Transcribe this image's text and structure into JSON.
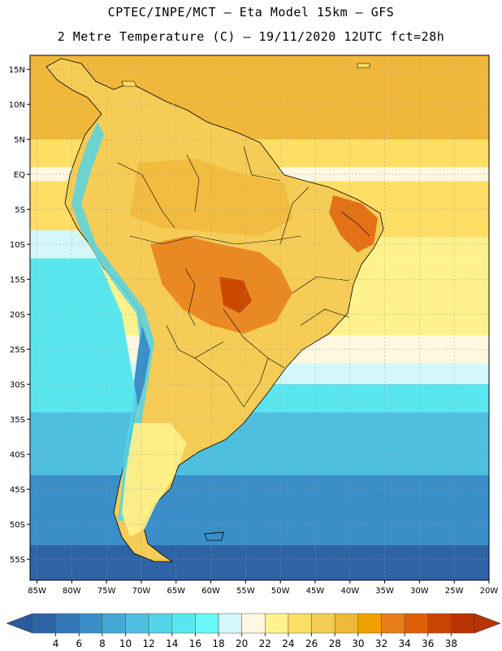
{
  "header": {
    "line1": "CPTEC/INPE/MCT –  Eta Model 15km – GFS",
    "line2": "2 Metre Temperature (C) – 19/11/2020 12UTC fct=28h"
  },
  "axes": {
    "lat_labels": [
      "15N",
      "10N",
      "5N",
      "EQ",
      "5S",
      "10S",
      "15S",
      "20S",
      "25S",
      "30S",
      "35S",
      "40S",
      "45S",
      "50S",
      "55S"
    ],
    "lat_values": [
      15,
      10,
      5,
      0,
      -5,
      -10,
      -15,
      -20,
      -25,
      -30,
      -35,
      -40,
      -45,
      -50,
      -55
    ],
    "lon_labels": [
      "85W",
      "80W",
      "75W",
      "70W",
      "65W",
      "60W",
      "55W",
      "50W",
      "45W",
      "40W",
      "35W",
      "30W",
      "25W",
      "20W"
    ],
    "lon_values": [
      -85,
      -80,
      -75,
      -70,
      -65,
      -60,
      -55,
      -50,
      -45,
      -40,
      -35,
      -30,
      -25,
      -20
    ],
    "lon_range": [
      -86,
      -20
    ],
    "lat_range": [
      -58,
      17
    ]
  },
  "colorbar": {
    "labels": [
      "4",
      "6",
      "8",
      "10",
      "12",
      "14",
      "16",
      "18",
      "20",
      "22",
      "24",
      "26",
      "28",
      "30",
      "32",
      "34",
      "36",
      "38"
    ],
    "colors": [
      "#2e64a6",
      "#3178b8",
      "#3a8fc8",
      "#45a8d6",
      "#4fbfe0",
      "#55d4e8",
      "#5ae6ef",
      "#6af7f7",
      "#d4f7fb",
      "#fff8e0",
      "#fff28c",
      "#ffde66",
      "#f5cc55",
      "#f0b83a",
      "#f0a000",
      "#e87d1a",
      "#e0600a",
      "#c84400",
      "#b83300"
    ],
    "left_arrow_color": "#2a5a9c",
    "right_arrow_color": "#b83300"
  },
  "map_colors": {
    "deep_cold": "#2e64a6",
    "cold": "#3a8fc8",
    "cool": "#4fbfe0",
    "mild": "#5ae6ef",
    "pale": "#d4f7fb",
    "neutral": "#fff8e0",
    "warm_light": "#fff28c",
    "warm": "#ffde66",
    "hot": "#f0b83a",
    "very_hot": "#e87d1a",
    "extreme": "#c84400",
    "gridline": "#9a9a9a",
    "border": "#000000"
  }
}
